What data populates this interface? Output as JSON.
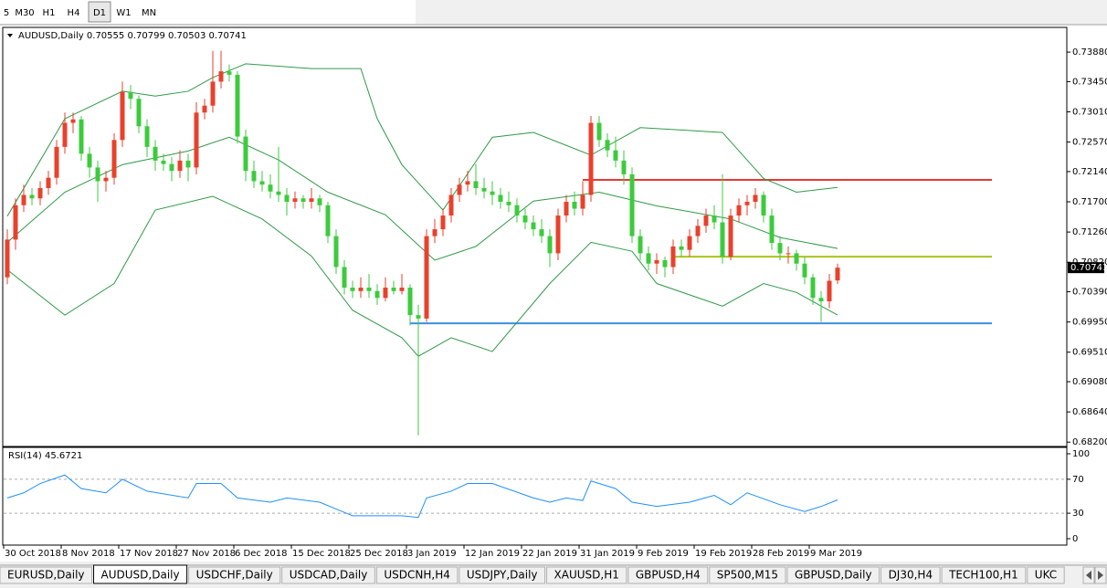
{
  "toolbar": {
    "timeframes": [
      "5",
      "M30",
      "H1",
      "H4",
      "D1",
      "W1",
      "MN"
    ],
    "active": 4
  },
  "chart_data": {
    "type": "candlestick",
    "symbol": "AUDUSD,Daily",
    "up_color": "#e8412c",
    "down_color": "#3ccb3c",
    "ylim": [
      0.6815,
      0.7424
    ],
    "yticks": [
      {
        "value": 0.7388,
        "label": "0.73880"
      },
      {
        "value": 0.7345,
        "label": "0.73450"
      },
      {
        "value": 0.7301,
        "label": "0.73010"
      },
      {
        "value": 0.7257,
        "label": "0.72570"
      },
      {
        "value": 0.7214,
        "label": "0.72140"
      },
      {
        "value": 0.717,
        "label": "0.71700"
      },
      {
        "value": 0.7126,
        "label": "0.71260"
      },
      {
        "value": 0.7082,
        "label": "0.70820"
      },
      {
        "value": 0.7039,
        "label": "0.70390"
      },
      {
        "value": 0.6995,
        "label": "0.69950"
      },
      {
        "value": 0.6951,
        "label": "0.69510"
      },
      {
        "value": 0.6908,
        "label": "0.69080"
      },
      {
        "value": 0.6864,
        "label": "0.68640"
      },
      {
        "value": 0.682,
        "label": "0.68200"
      }
    ],
    "categories": [
      "30 Oct 2018",
      null,
      null,
      null,
      null,
      null,
      null,
      "8 Nov 2018",
      null,
      null,
      null,
      null,
      null,
      null,
      "17 Nov 2018",
      null,
      null,
      null,
      null,
      null,
      null,
      "27 Nov 2018",
      null,
      null,
      null,
      null,
      null,
      null,
      "6 Dec 2018",
      null,
      null,
      null,
      null,
      null,
      null,
      "15 Dec 2018",
      null,
      null,
      null,
      null,
      null,
      null,
      "25 Dec 2018",
      null,
      null,
      null,
      null,
      null,
      null,
      "3 Jan 2019",
      null,
      null,
      null,
      null,
      null,
      null,
      "12 Jan 2019",
      null,
      null,
      null,
      null,
      null,
      null,
      "22 Jan 2019",
      null,
      null,
      null,
      null,
      null,
      null,
      "31 Jan 2019",
      null,
      null,
      null,
      null,
      null,
      null,
      "9 Feb 2019",
      null,
      null,
      null,
      null,
      null,
      null,
      "19 Feb 2019",
      null,
      null,
      null,
      null,
      null,
      null,
      "28 Feb 2019",
      null,
      null,
      null,
      null,
      null,
      null,
      "9 Mar 2019",
      null,
      null,
      null
    ],
    "candles": [
      [
        0.706,
        0.713,
        0.705,
        0.7115
      ],
      [
        0.7115,
        0.7175,
        0.71,
        0.7165
      ],
      [
        0.7165,
        0.7195,
        0.7155,
        0.718
      ],
      [
        0.718,
        0.719,
        0.7165,
        0.7175
      ],
      [
        0.7175,
        0.72,
        0.7165,
        0.719
      ],
      [
        0.719,
        0.7215,
        0.718,
        0.7205
      ],
      [
        0.7205,
        0.726,
        0.7195,
        0.725
      ],
      [
        0.725,
        0.73,
        0.724,
        0.7285
      ],
      [
        0.7285,
        0.73,
        0.727,
        0.729
      ],
      [
        0.729,
        0.7295,
        0.723,
        0.724
      ],
      [
        0.724,
        0.725,
        0.7205,
        0.722
      ],
      [
        0.722,
        0.723,
        0.717,
        0.72
      ],
      [
        0.72,
        0.7215,
        0.7185,
        0.7205
      ],
      [
        0.7205,
        0.727,
        0.7195,
        0.726
      ],
      [
        0.726,
        0.7345,
        0.725,
        0.733
      ],
      [
        0.733,
        0.734,
        0.7305,
        0.732
      ],
      [
        0.732,
        0.7325,
        0.727,
        0.728
      ],
      [
        0.728,
        0.729,
        0.7235,
        0.725
      ],
      [
        0.725,
        0.726,
        0.7215,
        0.723
      ],
      [
        0.723,
        0.724,
        0.7215,
        0.7225
      ],
      [
        0.7225,
        0.7235,
        0.72,
        0.7215
      ],
      [
        0.7215,
        0.7245,
        0.7205,
        0.723
      ],
      [
        0.723,
        0.724,
        0.72,
        0.722
      ],
      [
        0.722,
        0.7315,
        0.721,
        0.73
      ],
      [
        0.73,
        0.732,
        0.729,
        0.731
      ],
      [
        0.731,
        0.739,
        0.73,
        0.7345
      ],
      [
        0.7345,
        0.739,
        0.7335,
        0.736
      ],
      [
        0.736,
        0.737,
        0.7345,
        0.7355
      ],
      [
        0.7355,
        0.736,
        0.7255,
        0.7265
      ],
      [
        0.7265,
        0.7275,
        0.72,
        0.7215
      ],
      [
        0.7215,
        0.723,
        0.719,
        0.72
      ],
      [
        0.72,
        0.7215,
        0.7185,
        0.7195
      ],
      [
        0.7195,
        0.721,
        0.7175,
        0.7185
      ],
      [
        0.7185,
        0.725,
        0.717,
        0.718
      ],
      [
        0.718,
        0.719,
        0.715,
        0.717
      ],
      [
        0.717,
        0.7185,
        0.716,
        0.7175
      ],
      [
        0.7175,
        0.718,
        0.716,
        0.717
      ],
      [
        0.717,
        0.719,
        0.716,
        0.7175
      ],
      [
        0.7175,
        0.718,
        0.7155,
        0.7165
      ],
      [
        0.7165,
        0.717,
        0.711,
        0.712
      ],
      [
        0.712,
        0.713,
        0.7065,
        0.7075
      ],
      [
        0.7075,
        0.7085,
        0.7035,
        0.7045
      ],
      [
        0.7045,
        0.7055,
        0.703,
        0.704
      ],
      [
        0.704,
        0.706,
        0.703,
        0.7045
      ],
      [
        0.7045,
        0.7065,
        0.703,
        0.704
      ],
      [
        0.704,
        0.705,
        0.702,
        0.703
      ],
      [
        0.703,
        0.706,
        0.7025,
        0.7045
      ],
      [
        0.7045,
        0.7055,
        0.7035,
        0.704
      ],
      [
        0.704,
        0.7065,
        0.7035,
        0.7045
      ],
      [
        0.7045,
        0.705,
        0.699,
        0.7005
      ],
      [
        0.7005,
        0.702,
        0.683,
        0.7
      ],
      [
        0.7,
        0.713,
        0.6995,
        0.712
      ],
      [
        0.712,
        0.7145,
        0.711,
        0.713
      ],
      [
        0.713,
        0.716,
        0.712,
        0.715
      ],
      [
        0.715,
        0.719,
        0.714,
        0.718
      ],
      [
        0.718,
        0.7205,
        0.717,
        0.7195
      ],
      [
        0.7195,
        0.7215,
        0.7185,
        0.72
      ],
      [
        0.72,
        0.7225,
        0.718,
        0.719
      ],
      [
        0.719,
        0.7205,
        0.7175,
        0.7185
      ],
      [
        0.7185,
        0.72,
        0.7165,
        0.718
      ],
      [
        0.718,
        0.719,
        0.716,
        0.717
      ],
      [
        0.717,
        0.7185,
        0.7155,
        0.7165
      ],
      [
        0.7165,
        0.7175,
        0.714,
        0.715
      ],
      [
        0.715,
        0.716,
        0.713,
        0.714
      ],
      [
        0.714,
        0.715,
        0.712,
        0.713
      ],
      [
        0.713,
        0.7145,
        0.711,
        0.712
      ],
      [
        0.712,
        0.713,
        0.7075,
        0.7095
      ],
      [
        0.7095,
        0.716,
        0.7085,
        0.715
      ],
      [
        0.715,
        0.718,
        0.714,
        0.717
      ],
      [
        0.717,
        0.7185,
        0.715,
        0.716
      ],
      [
        0.716,
        0.72,
        0.715,
        0.718
      ],
      [
        0.718,
        0.7295,
        0.717,
        0.7285
      ],
      [
        0.7285,
        0.7295,
        0.725,
        0.726
      ],
      [
        0.726,
        0.727,
        0.7235,
        0.7245
      ],
      [
        0.7245,
        0.7265,
        0.722,
        0.723
      ],
      [
        0.723,
        0.7245,
        0.7195,
        0.721
      ],
      [
        0.721,
        0.722,
        0.711,
        0.712
      ],
      [
        0.712,
        0.713,
        0.7085,
        0.7095
      ],
      [
        0.7095,
        0.7105,
        0.707,
        0.708
      ],
      [
        0.708,
        0.7095,
        0.7065,
        0.7085
      ],
      [
        0.7085,
        0.709,
        0.706,
        0.7075
      ],
      [
        0.7075,
        0.7115,
        0.7065,
        0.7105
      ],
      [
        0.7105,
        0.7115,
        0.709,
        0.71
      ],
      [
        0.71,
        0.713,
        0.709,
        0.712
      ],
      [
        0.712,
        0.7145,
        0.711,
        0.7135
      ],
      [
        0.7135,
        0.716,
        0.7125,
        0.715
      ],
      [
        0.715,
        0.7165,
        0.713,
        0.714
      ],
      [
        0.714,
        0.721,
        0.708,
        0.709
      ],
      [
        0.709,
        0.716,
        0.7085,
        0.715
      ],
      [
        0.715,
        0.7175,
        0.714,
        0.7165
      ],
      [
        0.7165,
        0.718,
        0.715,
        0.717
      ],
      [
        0.717,
        0.719,
        0.716,
        0.718
      ],
      [
        0.718,
        0.7185,
        0.714,
        0.715
      ],
      [
        0.715,
        0.716,
        0.71,
        0.711
      ],
      [
        0.711,
        0.712,
        0.7085,
        0.7095
      ],
      [
        0.7095,
        0.7105,
        0.708,
        0.7095
      ],
      [
        0.7095,
        0.71,
        0.707,
        0.708
      ],
      [
        0.708,
        0.709,
        0.705,
        0.706
      ],
      [
        0.706,
        0.7065,
        0.702,
        0.703
      ],
      [
        0.703,
        0.704,
        0.6995,
        0.7025
      ],
      [
        0.7025,
        0.7065,
        0.7015,
        0.7055
      ],
      [
        0.70555,
        0.70799,
        0.70503,
        0.70741
      ]
    ],
    "bands": {
      "color": "#2f9a47",
      "upper": {
        "x": [
          0,
          7,
          14,
          18,
          22,
          25,
          29,
          37,
          43,
          45,
          48,
          53,
          59,
          64,
          71,
          77,
          87,
          92,
          96,
          101
        ],
        "values": [
          0.7149,
          0.7291,
          0.7331,
          0.7324,
          0.7331,
          0.7351,
          0.7371,
          0.7364,
          0.7364,
          0.7291,
          0.7224,
          0.7158,
          0.7264,
          0.7271,
          0.7238,
          0.7278,
          0.7271,
          0.7204,
          0.7184,
          0.7191
        ]
      },
      "middle": {
        "x": [
          0,
          7,
          14,
          22,
          27,
          33,
          39,
          46,
          52,
          57,
          64,
          72,
          79,
          88,
          94,
          101
        ],
        "values": [
          0.7111,
          0.7184,
          0.7224,
          0.7244,
          0.7264,
          0.7231,
          0.7184,
          0.7151,
          0.7085,
          0.7105,
          0.7171,
          0.7184,
          0.7164,
          0.7145,
          0.7118,
          0.7102
        ]
      },
      "lower": {
        "x": [
          0,
          7,
          13,
          18,
          25,
          31,
          37,
          42,
          48,
          50,
          54,
          59,
          66,
          71,
          76,
          79,
          87,
          92,
          96,
          101
        ],
        "values": [
          0.7071,
          0.7005,
          0.7051,
          0.7158,
          0.7178,
          0.7145,
          0.7091,
          0.7012,
          0.6972,
          0.6945,
          0.6972,
          0.6952,
          0.7051,
          0.7111,
          0.7098,
          0.7051,
          0.7018,
          0.7051,
          0.7038,
          0.7005
        ]
      }
    },
    "levels": [
      {
        "value": 0.7202,
        "from": 70,
        "color": "#e53935"
      },
      {
        "value": 0.709,
        "from": 81,
        "color": "#a8c41c"
      },
      {
        "value": 0.6993,
        "from": 49,
        "color": "#3a8ee6"
      }
    ],
    "rsi": {
      "title": "RSI(14) 45.6721",
      "color": "#1e90ff",
      "ylim": [
        0,
        100
      ],
      "yticks": [
        100,
        70,
        30,
        0
      ],
      "levels": [
        70,
        30
      ],
      "x": [
        0,
        2,
        4,
        7,
        9,
        12,
        14,
        17,
        22,
        23,
        26,
        28,
        32,
        34,
        38,
        42,
        45,
        48,
        50,
        51,
        54,
        56,
        59,
        64,
        66,
        68,
        70,
        71,
        74,
        76,
        79,
        83,
        86,
        88,
        90,
        94,
        97,
        99,
        101
      ],
      "values": [
        48,
        54,
        65,
        75,
        59,
        54,
        70,
        56,
        48,
        65,
        65,
        48,
        43,
        48,
        43,
        27,
        27,
        27,
        25,
        48,
        56,
        65,
        65,
        48,
        43,
        48,
        45,
        68,
        59,
        43,
        38,
        43,
        51,
        40,
        54,
        40,
        32,
        38,
        45.6721
      ]
    }
  },
  "tabs": [
    "EURUSD,Daily",
    "AUDUSD,Daily",
    "USDCHF,Daily",
    "USDCAD,Daily",
    "USDCNH,H4",
    "USDJPY,Daily",
    "XAUUSD,H1",
    "GBPUSD,H4",
    "SP500,M15",
    "GBPUSD,Daily",
    "DJ30,H4",
    "TECH100,H1",
    "UKC"
  ],
  "active_tab": 1
}
